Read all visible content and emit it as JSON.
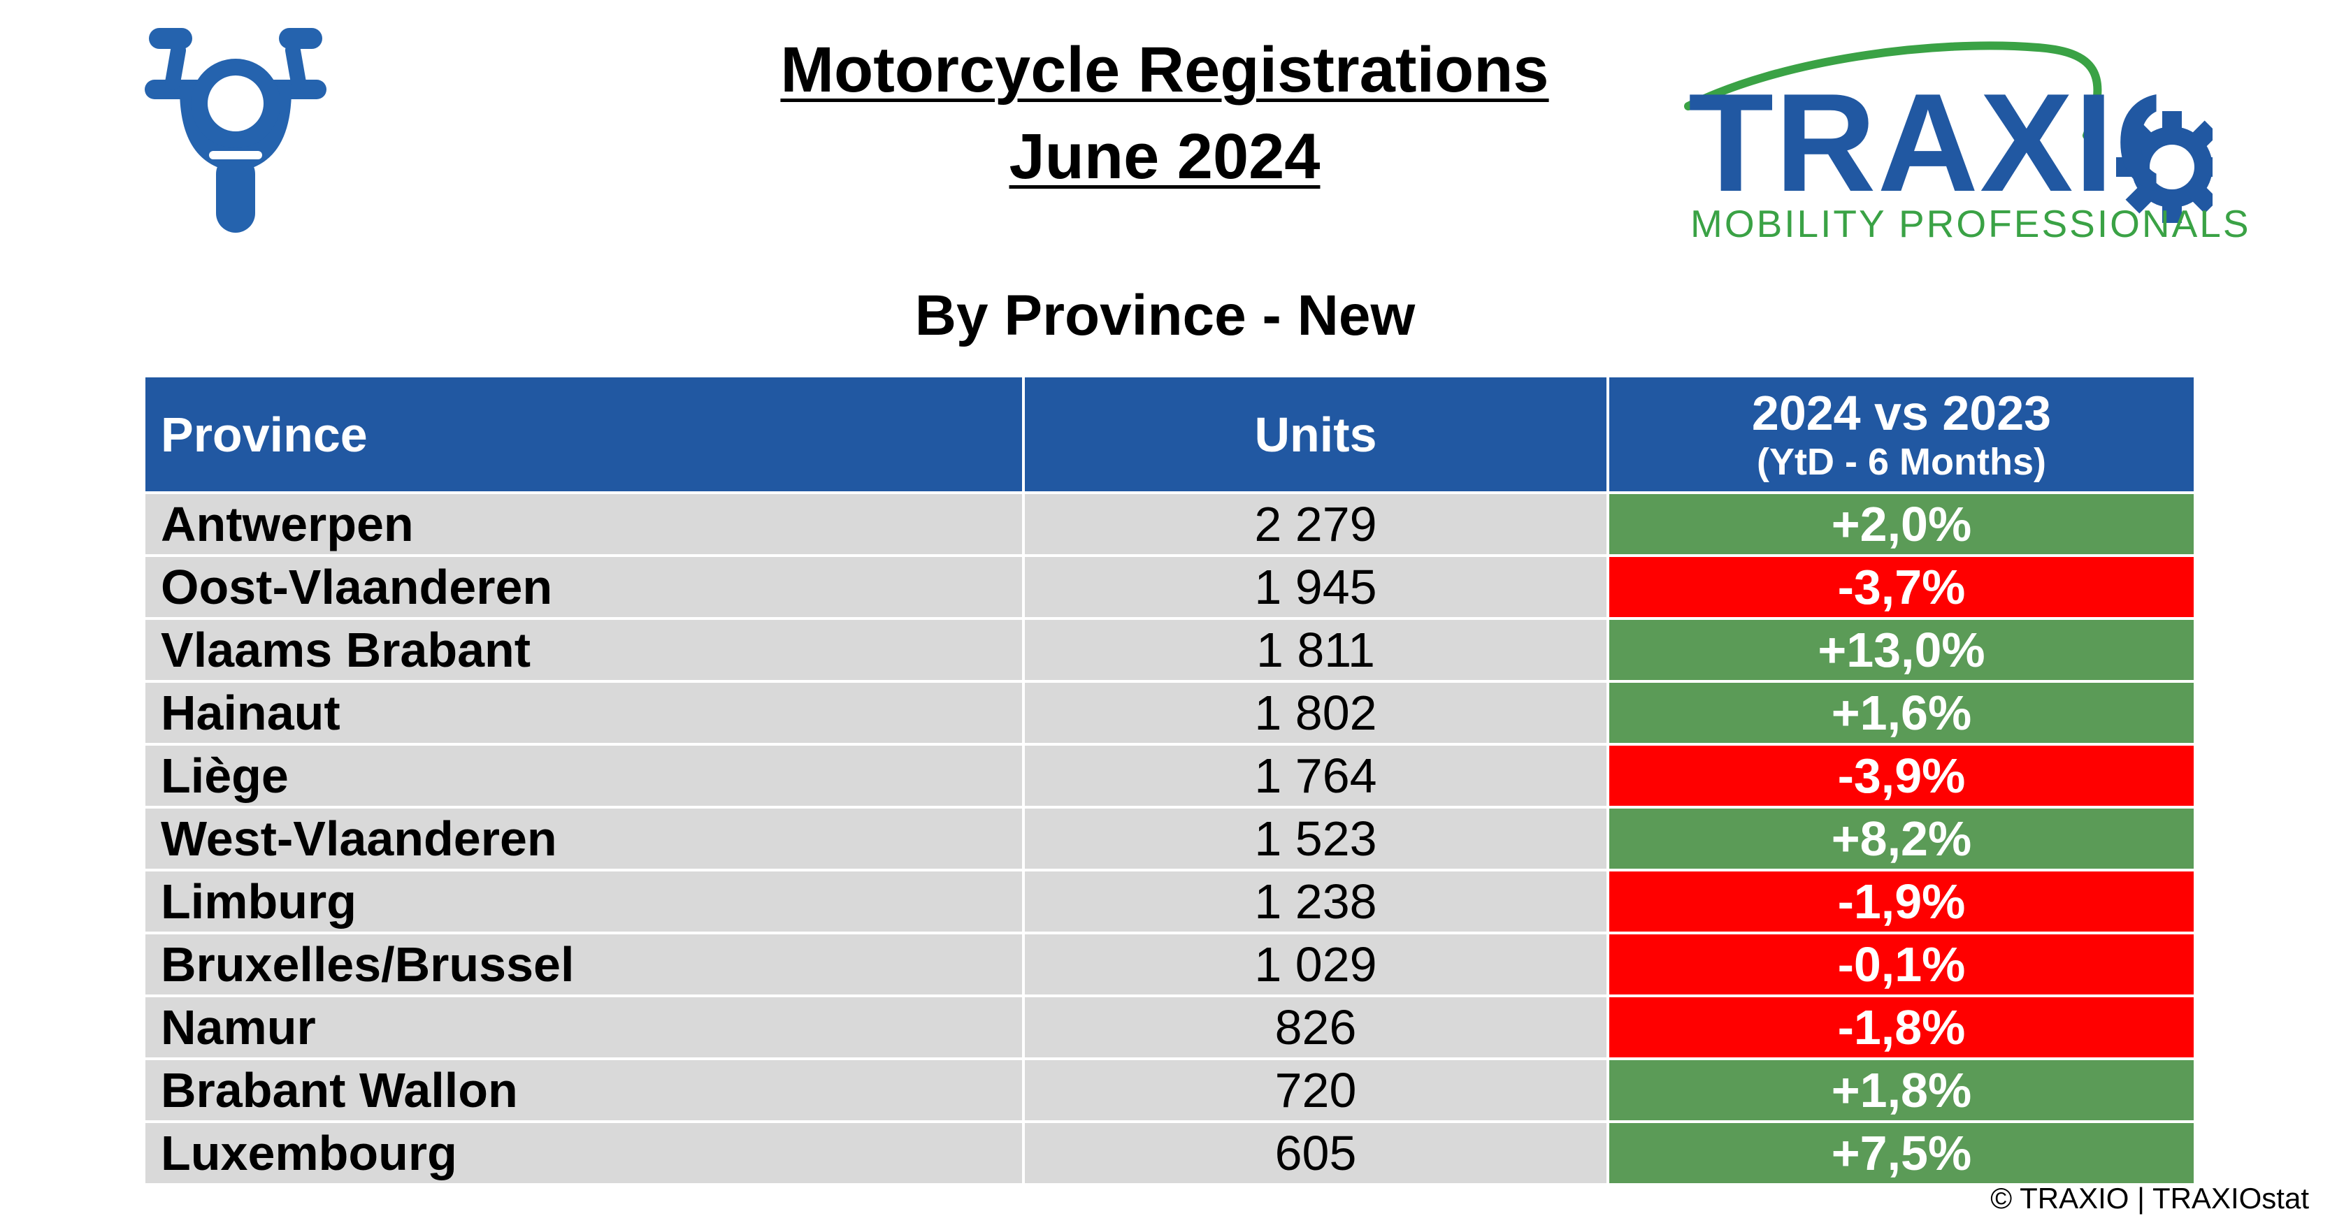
{
  "header": {
    "title_line1": "Motorcycle Registrations",
    "title_line2": "June 2024",
    "subtitle": "By Province - New"
  },
  "icons": {
    "motorcycle": "motorcycle-icon"
  },
  "logo": {
    "word": "TRAXIO",
    "tagline": "MOBILITY PROFESSIONALS",
    "colors": {
      "word": "#2158a2",
      "accent": "#3aa245"
    }
  },
  "table": {
    "headers": {
      "province": "Province",
      "units": "Units",
      "change": "2024 vs 2023",
      "change_sub": "(YtD - 6 Months)"
    },
    "rows": [
      {
        "province": "Antwerpen",
        "units": "2 279",
        "change": "+2,0%",
        "status": "positive"
      },
      {
        "province": "Oost-Vlaanderen",
        "units": "1 945",
        "change": "-3,7%",
        "status": "negative"
      },
      {
        "province": "Vlaams Brabant",
        "units": "1 811",
        "change": "+13,0%",
        "status": "positive"
      },
      {
        "province": "Hainaut",
        "units": "1 802",
        "change": "+1,6%",
        "status": "positive"
      },
      {
        "province": "Liège",
        "units": "1 764",
        "change": "-3,9%",
        "status": "negative"
      },
      {
        "province": "West-Vlaanderen",
        "units": "1 523",
        "change": "+8,2%",
        "status": "positive"
      },
      {
        "province": "Limburg",
        "units": "1 238",
        "change": "-1,9%",
        "status": "negative"
      },
      {
        "province": "Bruxelles/Brussel",
        "units": "1 029",
        "change": "-0,1%",
        "status": "negative"
      },
      {
        "province": "Namur",
        "units": "826",
        "change": "-1,8%",
        "status": "negative"
      },
      {
        "province": "Brabant Wallon",
        "units": "720",
        "change": "+1,8%",
        "status": "positive"
      },
      {
        "province": "Luxembourg",
        "units": "605",
        "change": "+7,5%",
        "status": "positive"
      }
    ]
  },
  "colors": {
    "header_bg": "#2158a2",
    "row_bg": "#d9d9d9",
    "positive": "#5b9b57",
    "negative": "#ff0000"
  },
  "footer": {
    "copyright": "© TRAXIO | TRAXIOstat"
  }
}
